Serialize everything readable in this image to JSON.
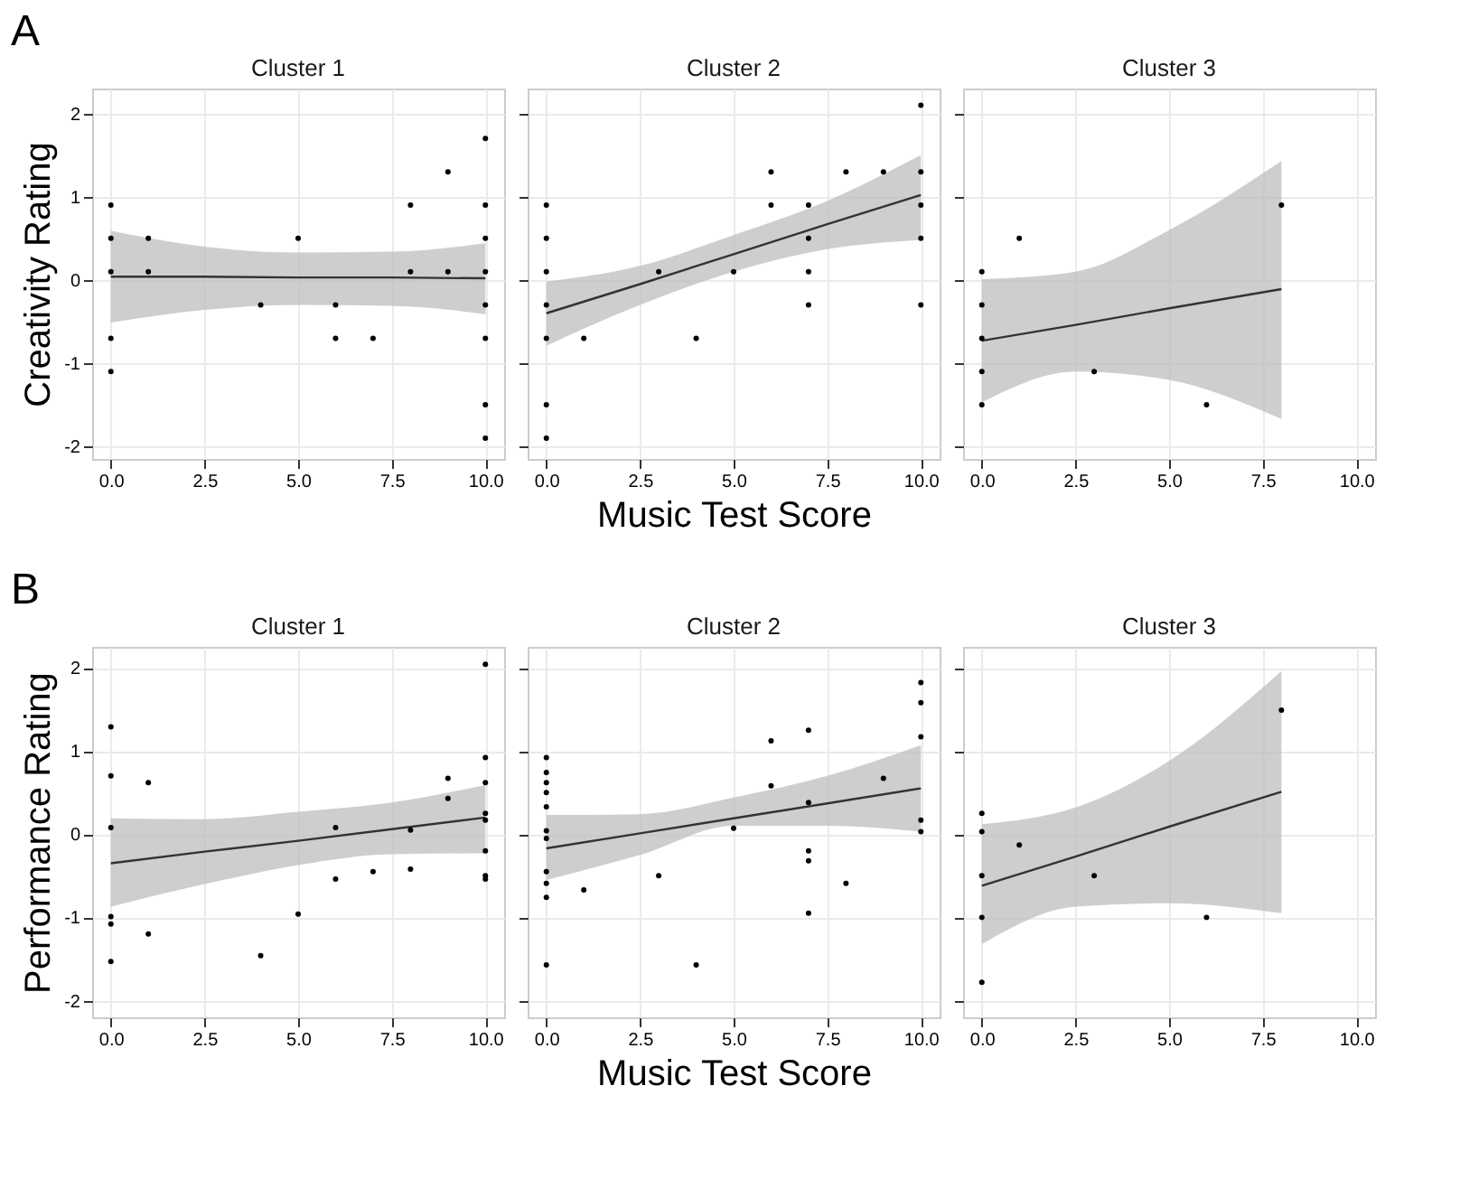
{
  "chart_data": [
    {
      "type": "scatter",
      "title": "Cluster 1",
      "ylabel": "Creativity Rating",
      "annotations": [
        "A"
      ],
      "xlim": [
        -0.5,
        10.5
      ],
      "xticks": [
        {
          "value": 0,
          "label": "0.0"
        },
        {
          "value": 2.5,
          "label": "2.5"
        },
        {
          "value": 5,
          "label": "5.0"
        },
        {
          "value": 7.5,
          "label": "7.5"
        },
        {
          "value": 10,
          "label": "10.0"
        }
      ],
      "ylim": [
        -2.15,
        2.3
      ],
      "yticks": [
        -2,
        -1,
        0,
        1,
        2
      ],
      "grid": true,
      "marker": "circle",
      "series": [
        {
          "color": "#000000",
          "x": [
            0,
            0,
            0,
            0,
            0,
            1,
            1,
            4,
            5,
            6,
            6,
            7,
            8,
            8,
            9,
            9,
            10,
            10,
            10,
            10,
            10,
            10,
            10,
            10
          ],
          "values": [
            0.9,
            0.5,
            0.1,
            -0.7,
            -1.1,
            0.5,
            0.1,
            -0.3,
            0.5,
            -0.3,
            -0.7,
            -0.7,
            0.9,
            0.1,
            1.3,
            0.1,
            1.7,
            0.9,
            0.5,
            0.1,
            -0.3,
            -0.7,
            -1.5,
            -1.9
          ]
        },
        {
          "type": "line",
          "color": "#333333",
          "x": [
            0,
            2.5,
            5,
            7.5,
            10
          ],
          "values": [
            0.04,
            0.04,
            0.03,
            0.03,
            0.02
          ],
          "marker": "none",
          "lower": [
            -0.51,
            -0.36,
            -0.3,
            -0.31,
            -0.41
          ],
          "upper": [
            0.59,
            0.4,
            0.33,
            0.34,
            0.44
          ]
        }
      ]
    },
    {
      "type": "scatter",
      "title": "Cluster 2",
      "xlabel": "Music Test Score",
      "tick_labels": "x",
      "xlim": [
        -0.5,
        10.5
      ],
      "xticks": [
        {
          "value": 0,
          "label": "0.0"
        },
        {
          "value": 2.5,
          "label": "2.5"
        },
        {
          "value": 5,
          "label": "5.0"
        },
        {
          "value": 7.5,
          "label": "7.5"
        },
        {
          "value": 10,
          "label": "10.0"
        }
      ],
      "ylim": [
        -2.15,
        2.3
      ],
      "yticks": [
        -2,
        -1,
        0,
        1,
        2
      ],
      "grid": true,
      "marker": "circle",
      "series": [
        {
          "color": "#000000",
          "x": [
            0,
            0,
            0,
            0,
            0,
            0,
            0,
            1,
            3,
            4,
            5,
            6,
            6,
            7,
            7,
            7,
            7,
            8,
            9,
            10,
            10,
            10,
            10,
            10
          ],
          "values": [
            0.9,
            0.5,
            0.1,
            -0.3,
            -0.7,
            -1.5,
            -1.9,
            -0.7,
            0.1,
            -0.7,
            0.1,
            1.3,
            0.9,
            0.9,
            0.5,
            0.1,
            -0.3,
            1.3,
            1.3,
            2.1,
            1.3,
            0.9,
            0.5,
            -0.3
          ]
        },
        {
          "type": "line",
          "color": "#333333",
          "x": [
            0,
            2.5,
            5,
            7.5,
            10
          ],
          "values": [
            -0.4,
            -0.05,
            0.31,
            0.67,
            1.02
          ],
          "marker": "none",
          "lower": [
            -0.79,
            -0.3,
            0.1,
            0.37,
            0.48
          ],
          "upper": [
            -0.02,
            0.17,
            0.54,
            0.95,
            1.5
          ]
        }
      ]
    },
    {
      "type": "scatter",
      "title": "Cluster 3",
      "tick_labels": "x",
      "xlim": [
        -0.5,
        10.5
      ],
      "xticks": [
        {
          "value": 0,
          "label": "0.0"
        },
        {
          "value": 2.5,
          "label": "2.5"
        },
        {
          "value": 5,
          "label": "5.0"
        },
        {
          "value": 7.5,
          "label": "7.5"
        },
        {
          "value": 10,
          "label": "10.0"
        }
      ],
      "ylim": [
        -2.15,
        2.3
      ],
      "yticks": [
        -2,
        -1,
        0,
        1,
        2
      ],
      "grid": true,
      "marker": "circle",
      "series": [
        {
          "color": "#000000",
          "x": [
            0,
            0,
            0,
            0,
            0,
            1,
            3,
            6,
            8
          ],
          "values": [
            0.1,
            -0.3,
            -0.7,
            -1.1,
            -1.5,
            0.5,
            -1.1,
            -1.5,
            0.9
          ]
        },
        {
          "type": "line",
          "color": "#333333",
          "x": [
            0,
            2.5,
            5,
            8
          ],
          "values": [
            -0.73,
            -0.54,
            -0.34,
            -0.11
          ],
          "marker": "none",
          "lower": [
            -1.47,
            -1.1,
            -1.2,
            -1.67
          ],
          "upper": [
            0.01,
            0.1,
            0.6,
            1.43
          ]
        }
      ]
    },
    {
      "type": "scatter",
      "title": "Cluster 1",
      "ylabel": "Performance Rating",
      "annotations": [
        "B"
      ],
      "xlim": [
        -0.5,
        10.5
      ],
      "xticks": [
        {
          "value": 0,
          "label": "0.0"
        },
        {
          "value": 2.5,
          "label": "2.5"
        },
        {
          "value": 5,
          "label": "5.0"
        },
        {
          "value": 7.5,
          "label": "7.5"
        },
        {
          "value": 10,
          "label": "10.0"
        }
      ],
      "ylim": [
        -2.2,
        2.25
      ],
      "yticks": [
        -2,
        -1,
        0,
        1,
        2
      ],
      "grid": true,
      "marker": "circle",
      "series": [
        {
          "color": "#000000",
          "x": [
            0,
            0,
            0,
            0,
            0,
            0,
            1,
            1,
            4,
            5,
            6,
            6,
            7,
            8,
            8,
            9,
            9,
            10,
            10,
            10,
            10,
            10,
            10,
            10,
            10
          ],
          "values": [
            1.29,
            0.7,
            0.08,
            -0.99,
            -1.08,
            -1.53,
            0.62,
            -1.2,
            -1.46,
            -0.96,
            0.08,
            -0.54,
            -0.45,
            0.05,
            -0.42,
            0.67,
            0.43,
            2.04,
            0.92,
            0.62,
            0.25,
            0.17,
            -0.2,
            -0.5,
            -0.54
          ]
        },
        {
          "type": "line",
          "color": "#333333",
          "x": [
            0,
            2.5,
            5,
            7.5,
            10
          ],
          "values": [
            -0.35,
            -0.21,
            -0.08,
            0.06,
            0.2
          ],
          "marker": "none",
          "lower": [
            -0.87,
            -0.6,
            -0.37,
            -0.24,
            -0.23
          ],
          "upper": [
            0.19,
            0.18,
            0.27,
            0.38,
            0.59
          ]
        }
      ]
    },
    {
      "type": "scatter",
      "title": "Cluster 2",
      "xlabel": "Music Test Score",
      "tick_labels": "x",
      "xlim": [
        -0.5,
        10.5
      ],
      "xticks": [
        {
          "value": 0,
          "label": "0.0"
        },
        {
          "value": 2.5,
          "label": "2.5"
        },
        {
          "value": 5,
          "label": "5.0"
        },
        {
          "value": 7.5,
          "label": "7.5"
        },
        {
          "value": 10,
          "label": "10.0"
        }
      ],
      "ylim": [
        -2.2,
        2.25
      ],
      "yticks": [
        -2,
        -1,
        0,
        1,
        2
      ],
      "grid": true,
      "marker": "circle",
      "series": [
        {
          "color": "#000000",
          "x": [
            0,
            0,
            0,
            0,
            0,
            0,
            0,
            0,
            0,
            0,
            0,
            1,
            3,
            4,
            5,
            6,
            6,
            7,
            7,
            7,
            7,
            7,
            8,
            9,
            10,
            10,
            10,
            10,
            10
          ],
          "values": [
            0.92,
            0.74,
            0.62,
            0.5,
            0.33,
            0.04,
            -0.05,
            -0.45,
            -0.59,
            -0.76,
            -1.57,
            -0.67,
            -0.5,
            -1.57,
            0.07,
            1.12,
            0.58,
            1.25,
            0.38,
            -0.2,
            -0.32,
            -0.95,
            -0.59,
            0.67,
            1.82,
            1.58,
            1.17,
            0.17,
            0.03
          ]
        },
        {
          "type": "line",
          "color": "#333333",
          "x": [
            0,
            2.5,
            5,
            7.5,
            10
          ],
          "values": [
            -0.17,
            0.01,
            0.19,
            0.37,
            0.55
          ],
          "marker": "none",
          "lower": [
            -0.55,
            -0.25,
            0.1,
            0.1,
            0.03
          ],
          "upper": [
            0.23,
            0.24,
            0.44,
            0.7,
            1.07
          ]
        }
      ]
    },
    {
      "type": "scatter",
      "title": "Cluster 3",
      "tick_labels": "x",
      "xlim": [
        -0.5,
        10.5
      ],
      "xticks": [
        {
          "value": 0,
          "label": "0.0"
        },
        {
          "value": 2.5,
          "label": "2.5"
        },
        {
          "value": 5,
          "label": "5.0"
        },
        {
          "value": 7.5,
          "label": "7.5"
        },
        {
          "value": 10,
          "label": "10.0"
        }
      ],
      "ylim": [
        -2.2,
        2.25
      ],
      "yticks": [
        -2,
        -1,
        0,
        1,
        2
      ],
      "grid": true,
      "marker": "circle",
      "series": [
        {
          "color": "#000000",
          "x": [
            0,
            0,
            0,
            0,
            0,
            1,
            3,
            6,
            8
          ],
          "values": [
            0.25,
            0.03,
            -0.5,
            -1.0,
            -1.78,
            -0.13,
            -0.5,
            -1.0,
            1.49
          ]
        },
        {
          "type": "line",
          "color": "#333333",
          "x": [
            0,
            2.5,
            5,
            8
          ],
          "values": [
            -0.62,
            -0.27,
            0.09,
            0.51
          ],
          "marker": "none",
          "lower": [
            -1.32,
            -0.87,
            -0.83,
            -0.95
          ],
          "upper": [
            0.12,
            0.32,
            0.88,
            1.96
          ]
        }
      ]
    }
  ]
}
